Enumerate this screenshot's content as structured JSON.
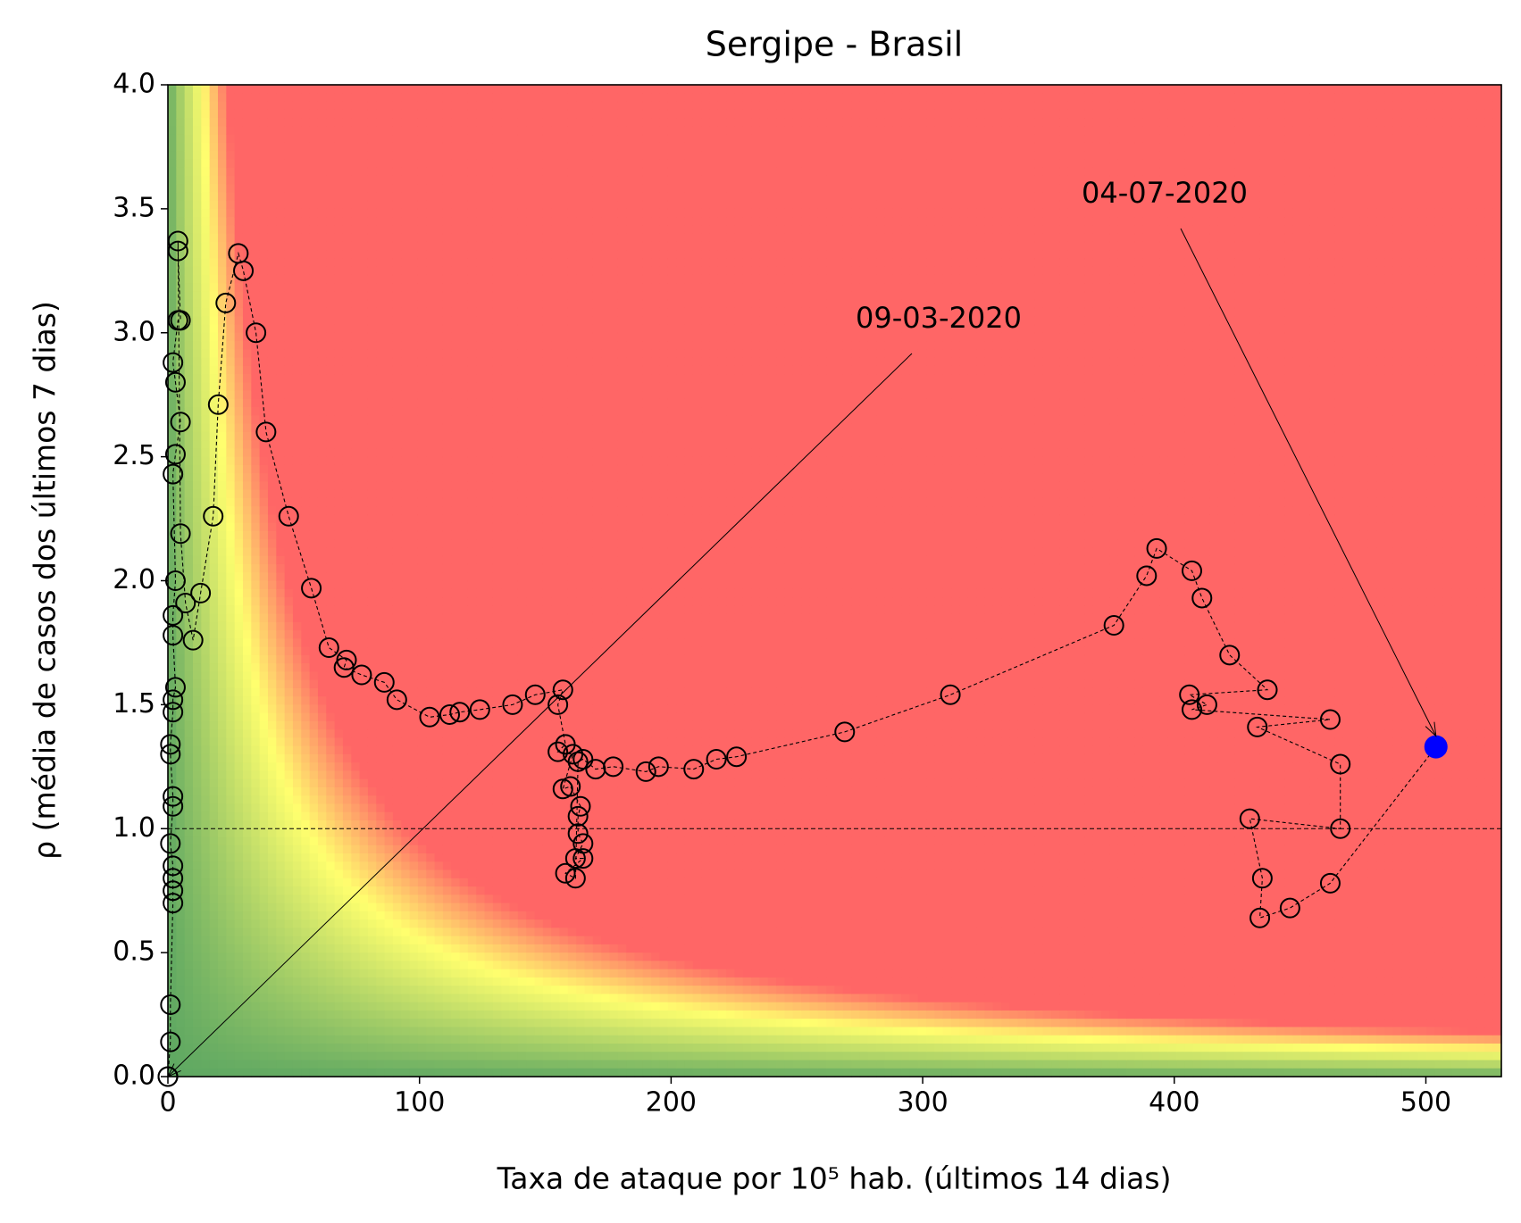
{
  "chart_data": {
    "type": "scatter",
    "title": "Sergipe - Brasil",
    "x_label": "Taxa de ataque por 10⁵ hab. (últimos 14 dias)",
    "y_label": "ρ (média de casos dos últimos 7 dias)",
    "xlim": [
      0,
      530
    ],
    "ylim": [
      0,
      4
    ],
    "xticks": [
      0,
      100,
      200,
      300,
      400,
      500
    ],
    "yticks": [
      {
        "value": 0,
        "label": "0.0"
      },
      {
        "value": 0.5,
        "label": "0.5"
      },
      {
        "value": 1,
        "label": "1.0"
      },
      {
        "value": 1.5,
        "label": "1.5"
      },
      {
        "value": 2,
        "label": "2.0"
      },
      {
        "value": 2.5,
        "label": "2.5"
      },
      {
        "value": 3,
        "label": "3.0"
      },
      {
        "value": 3.5,
        "label": "3.5"
      },
      {
        "value": 4,
        "label": "4.0"
      }
    ],
    "reference_line": 1,
    "color": "#000000",
    "last_color": "#0000ff",
    "x": [
      0,
      0,
      1,
      1,
      2,
      2,
      2,
      2,
      1,
      2,
      2,
      1,
      1,
      2,
      2,
      3,
      2,
      2,
      3,
      2,
      3,
      5,
      3,
      2,
      4,
      5,
      4,
      4,
      5,
      7,
      10,
      13,
      18,
      20,
      23,
      28,
      30,
      35,
      39,
      48,
      57,
      64,
      71,
      70,
      77,
      86,
      91,
      104,
      112,
      116,
      124,
      137,
      146,
      157,
      155,
      158,
      155,
      161,
      157,
      160,
      164,
      163,
      163,
      165,
      162,
      165,
      158,
      162,
      163,
      165,
      170,
      177,
      190,
      195,
      209,
      218,
      226,
      269,
      311,
      376,
      389,
      393,
      407,
      411,
      422,
      437,
      406,
      413,
      407,
      462,
      433,
      466,
      466,
      430,
      435,
      434,
      446,
      462,
      504
    ],
    "values": [
      0,
      0,
      0.14,
      0.29,
      0.7,
      0.75,
      0.8,
      0.85,
      0.94,
      1.09,
      1.13,
      1.3,
      1.34,
      1.47,
      1.52,
      1.57,
      1.78,
      1.86,
      2.0,
      2.43,
      2.51,
      2.64,
      2.8,
      2.88,
      3.05,
      3.05,
      3.33,
      3.37,
      2.19,
      1.91,
      1.76,
      1.95,
      2.26,
      2.71,
      3.12,
      3.32,
      3.25,
      3.0,
      2.6,
      2.26,
      1.97,
      1.73,
      1.68,
      1.65,
      1.62,
      1.59,
      1.52,
      1.45,
      1.46,
      1.47,
      1.48,
      1.5,
      1.54,
      1.56,
      1.5,
      1.34,
      1.31,
      1.3,
      1.16,
      1.17,
      1.09,
      1.05,
      0.98,
      0.94,
      0.88,
      0.88,
      0.82,
      0.8,
      1.27,
      1.28,
      1.24,
      1.25,
      1.23,
      1.25,
      1.24,
      1.28,
      1.29,
      1.39,
      1.54,
      1.82,
      2.02,
      2.13,
      2.04,
      1.93,
      1.7,
      1.56,
      1.54,
      1.5,
      1.48,
      1.44,
      1.41,
      1.26,
      1.0,
      1.04,
      0.8,
      0.64,
      0.68,
      0.78,
      1.33
    ],
    "annotations": [
      "09-03-2020",
      "04-07-2020"
    ]
  }
}
